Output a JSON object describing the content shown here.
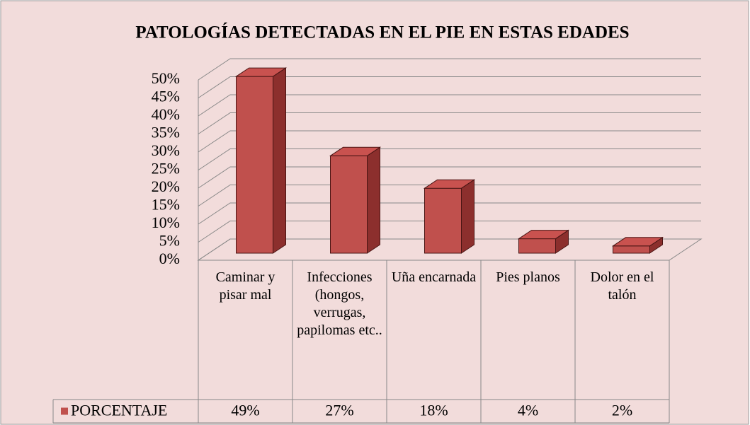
{
  "chart_data": {
    "type": "bar3d",
    "title": "PATOLOGÍAS DETECTADAS EN EL PIE EN ESTAS EDADES",
    "categories": [
      "Caminar y pisar mal",
      "Infecciones (hongos, verrugas, papilomas etc..",
      "Uña encarnada",
      "Pies planos",
      "Dolor en el talón"
    ],
    "series": [
      {
        "name": "PORCENTAJE",
        "color": "#c0504d",
        "values": [
          49,
          27,
          18,
          4,
          2
        ],
        "value_labels": [
          "49%",
          "27%",
          "18%",
          "4%",
          "2%"
        ]
      }
    ],
    "ylim": [
      0,
      50
    ],
    "yticks": [
      {
        "value": 0,
        "label": "0%"
      },
      {
        "value": 5,
        "label": "5%"
      },
      {
        "value": 10,
        "label": "10%"
      },
      {
        "value": 15,
        "label": "15%"
      },
      {
        "value": 20,
        "label": "20%"
      },
      {
        "value": 25,
        "label": "25%"
      },
      {
        "value": 30,
        "label": "30%"
      },
      {
        "value": 35,
        "label": "35%"
      },
      {
        "value": 40,
        "label": "40%"
      },
      {
        "value": 45,
        "label": "45%"
      },
      {
        "value": 50,
        "label": "50%"
      }
    ],
    "grid": true
  }
}
